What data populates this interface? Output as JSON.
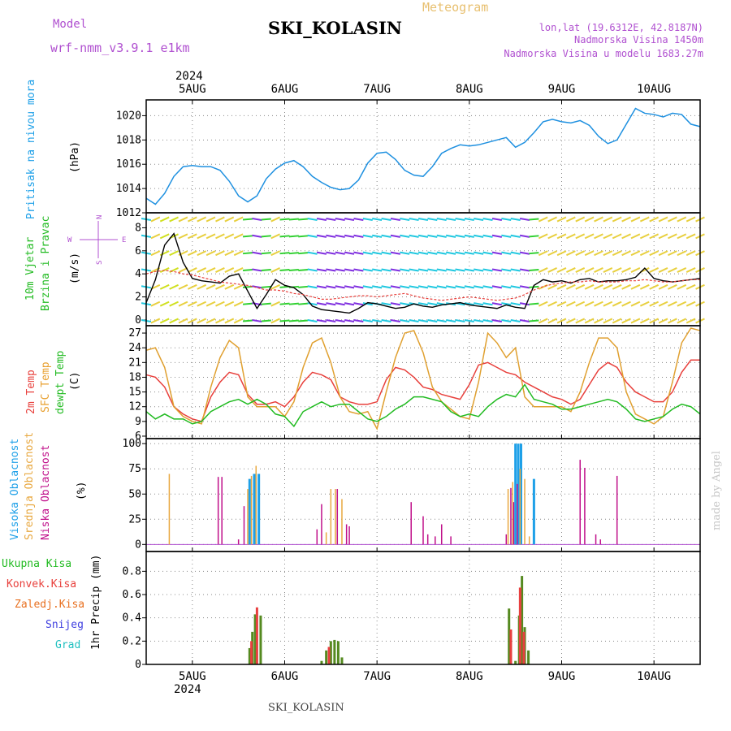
{
  "header": {
    "model_label": "Model",
    "model_name": "wrf-nmm_v3.9.1 e1km",
    "title": "SKI_KOLASIN",
    "product": "Meteogram",
    "coords": "lon,lat (19.6312E, 42.8187N)",
    "elevation": "Nadmorska Visina 1450m",
    "model_elevation": "Nadmorska Visina u modelu 1683.27m",
    "footer_station": "SKI_KOLASIN",
    "watermark": "made by Angel",
    "year": "2024"
  },
  "colors": {
    "pressure": "#1e90e0",
    "t2m": "#e8403c",
    "sfc": "#e0a030",
    "dewpt": "#22bb22",
    "high_cloud": "#1ea0e8",
    "mid_cloud": "#e8a840",
    "low_cloud": "#c0108a",
    "total_precip": "#44bb22",
    "conv_precip": "#e84040",
    "frz_precip": "#e87020",
    "snow": "#4040e0",
    "graupel": "#20c0c0",
    "title_purple": "#b050d0",
    "grid": "#888888"
  },
  "chart_data": [
    {
      "type": "line",
      "id": "pressure",
      "ylabel_left": "Pritisak na nivou mora",
      "unit": "(hPa)",
      "ylim": [
        1012,
        1021.3
      ],
      "yticks": [
        1012,
        1014,
        1016,
        1018,
        1020
      ],
      "x": [
        4.5,
        4.6,
        4.7,
        4.8,
        4.9,
        5.0,
        5.1,
        5.2,
        5.3,
        5.4,
        5.5,
        5.6,
        5.7,
        5.8,
        5.9,
        6.0,
        6.1,
        6.2,
        6.3,
        6.4,
        6.5,
        6.6,
        6.7,
        6.8,
        6.9,
        7.0,
        7.1,
        7.2,
        7.3,
        7.4,
        7.5,
        7.6,
        7.7,
        7.8,
        7.9,
        8.0,
        8.1,
        8.2,
        8.3,
        8.4,
        8.5,
        8.6,
        8.7,
        8.8,
        8.9,
        9.0,
        9.1,
        9.2,
        9.3,
        9.4,
        9.5,
        9.6,
        9.7,
        9.8,
        9.9,
        10.0,
        10.1,
        10.2,
        10.3,
        10.4,
        10.5
      ],
      "series": [
        {
          "name": "Pritisak",
          "values": [
            1013.2,
            1012.7,
            1013.6,
            1015.0,
            1015.8,
            1015.9,
            1015.8,
            1015.8,
            1015.5,
            1014.6,
            1013.4,
            1012.9,
            1013.4,
            1014.8,
            1015.6,
            1016.1,
            1016.3,
            1015.8,
            1015.0,
            1014.5,
            1014.1,
            1013.9,
            1014.0,
            1014.7,
            1016.1,
            1016.9,
            1017.0,
            1016.4,
            1015.5,
            1015.1,
            1015.0,
            1015.8,
            1016.9,
            1017.3,
            1017.6,
            1017.5,
            1017.6,
            1017.8,
            1018.0,
            1018.2,
            1017.4,
            1017.8,
            1018.6,
            1019.5,
            1019.7,
            1019.5,
            1019.4,
            1019.6,
            1019.2,
            1018.3,
            1017.7,
            1018.0,
            1019.3,
            1020.6,
            1020.2,
            1020.1,
            1019.9,
            1020.2,
            1020.1,
            1019.3,
            1019.1
          ]
        }
      ]
    },
    {
      "type": "line",
      "id": "wind",
      "ylabel_left": "10m Vjetar",
      "ylabel_left2": "Brzina i Pravac",
      "unit": "(m/s)",
      "compass": {
        "n": "N",
        "s": "S",
        "w": "W",
        "e": "E"
      },
      "ylim": [
        -0.5,
        9.3
      ],
      "yticks": [
        0,
        2,
        4,
        6,
        8
      ],
      "x": [
        4.5,
        4.6,
        4.7,
        4.8,
        4.9,
        5.0,
        5.1,
        5.2,
        5.3,
        5.4,
        5.5,
        5.6,
        5.7,
        5.8,
        5.9,
        6.0,
        6.1,
        6.2,
        6.3,
        6.4,
        6.5,
        6.6,
        6.7,
        6.8,
        6.9,
        7.0,
        7.1,
        7.2,
        7.3,
        7.4,
        7.5,
        7.6,
        7.7,
        7.8,
        7.9,
        8.0,
        8.1,
        8.2,
        8.3,
        8.4,
        8.5,
        8.6,
        8.7,
        8.8,
        8.9,
        9.0,
        9.1,
        9.2,
        9.3,
        9.4,
        9.5,
        9.6,
        9.7,
        9.8,
        9.9,
        10.0,
        10.1,
        10.2,
        10.3,
        10.4,
        10.5
      ],
      "series": [
        {
          "name": "Brzina",
          "values": [
            1.5,
            3.5,
            6.5,
            7.5,
            5.0,
            3.6,
            3.4,
            3.3,
            3.2,
            3.8,
            4.0,
            2.5,
            1.0,
            2.2,
            3.5,
            3.0,
            2.8,
            2.2,
            1.2,
            0.9,
            0.8,
            0.7,
            0.6,
            1.0,
            1.5,
            1.4,
            1.2,
            1.0,
            1.1,
            1.4,
            1.2,
            1.1,
            1.3,
            1.4,
            1.5,
            1.3,
            1.2,
            1.1,
            1.0,
            1.3,
            1.1,
            1.0,
            3.0,
            3.5,
            3.3,
            3.4,
            3.2,
            3.5,
            3.6,
            3.3,
            3.4,
            3.4,
            3.5,
            3.7,
            4.5,
            3.6,
            3.4,
            3.3,
            3.4,
            3.5,
            3.6
          ]
        },
        {
          "name": "Udari",
          "values": [
            4.0,
            4.2,
            4.3,
            4.2,
            4.0,
            3.9,
            3.7,
            3.5,
            3.3,
            3.2,
            3.1,
            3.0,
            2.8,
            2.6,
            2.6,
            2.5,
            2.3,
            2.2,
            2.0,
            1.8,
            1.8,
            1.9,
            2.0,
            2.1,
            2.1,
            2.0,
            2.1,
            2.2,
            2.3,
            2.1,
            1.9,
            1.8,
            1.7,
            1.8,
            1.9,
            2.0,
            1.9,
            1.8,
            1.7,
            1.8,
            1.9,
            2.2,
            2.6,
            2.9,
            3.1,
            3.2,
            3.3,
            3.3,
            3.4,
            3.3,
            3.3,
            3.3,
            3.4,
            3.4,
            3.5,
            3.4,
            3.3,
            3.3,
            3.4,
            3.5,
            3.5
          ]
        }
      ]
    },
    {
      "type": "line",
      "id": "temperature",
      "ylabel_left": [
        "2m Temp",
        "SFC Temp",
        "dewpt Temp"
      ],
      "unit": "(C)",
      "ylim": [
        5.5,
        28.5
      ],
      "yticks": [
        6,
        9,
        12,
        15,
        18,
        21,
        24,
        27
      ],
      "x": [
        4.5,
        4.6,
        4.7,
        4.8,
        4.9,
        5.0,
        5.1,
        5.2,
        5.3,
        5.4,
        5.5,
        5.6,
        5.7,
        5.8,
        5.9,
        6.0,
        6.1,
        6.2,
        6.3,
        6.4,
        6.5,
        6.6,
        6.7,
        6.8,
        6.9,
        7.0,
        7.1,
        7.2,
        7.3,
        7.4,
        7.5,
        7.6,
        7.7,
        7.8,
        7.9,
        8.0,
        8.1,
        8.2,
        8.3,
        8.4,
        8.5,
        8.6,
        8.7,
        8.8,
        8.9,
        9.0,
        9.1,
        9.2,
        9.3,
        9.4,
        9.5,
        9.6,
        9.7,
        9.8,
        9.9,
        10.0,
        10.1,
        10.2,
        10.3,
        10.4,
        10.5
      ],
      "series": [
        {
          "name": "2m Temp",
          "values": [
            18.5,
            18.0,
            16.0,
            12.0,
            10.5,
            9.5,
            9.0,
            14.0,
            17.0,
            19.0,
            18.5,
            14.5,
            12.5,
            12.5,
            13.0,
            12.0,
            14.0,
            17.0,
            19.0,
            18.5,
            17.5,
            14.0,
            13.0,
            12.5,
            12.5,
            13.0,
            17.5,
            20.0,
            19.5,
            18.0,
            16.0,
            15.5,
            14.5,
            14.0,
            13.5,
            16.5,
            20.5,
            21.0,
            20.0,
            19.0,
            18.5,
            17.0,
            16.0,
            15.0,
            14.0,
            13.5,
            12.5,
            13.5,
            16.5,
            19.5,
            21.0,
            20.0,
            17.0,
            15.0,
            14.0,
            13.0,
            13.0,
            15.0,
            19.0,
            21.5,
            21.5
          ]
        },
        {
          "name": "SFC Temp",
          "values": [
            23.5,
            24.0,
            20.0,
            12.0,
            10.0,
            9.0,
            8.5,
            16.0,
            22.0,
            25.5,
            24.0,
            14.0,
            12.0,
            12.0,
            12.0,
            10.0,
            13.0,
            20.0,
            25.0,
            26.0,
            21.0,
            14.0,
            11.0,
            10.5,
            11.0,
            7.5,
            15.0,
            22.0,
            27.0,
            27.5,
            23.0,
            16.0,
            13.0,
            11.5,
            10.0,
            9.5,
            17.0,
            27.0,
            25.0,
            22.0,
            24.0,
            14.0,
            12.0,
            12.0,
            12.0,
            12.0,
            11.0,
            15.0,
            21.0,
            26.0,
            26.0,
            24.0,
            15.0,
            10.5,
            9.5,
            8.5,
            10.0,
            17.0,
            25.0,
            28.0,
            27.5
          ]
        },
        {
          "name": "dewpt Temp",
          "values": [
            11.0,
            9.5,
            10.5,
            9.5,
            9.5,
            8.5,
            9.0,
            11.0,
            12.0,
            13.0,
            13.5,
            12.5,
            13.5,
            12.5,
            10.5,
            10.0,
            8.0,
            11.0,
            12.0,
            13.0,
            12.0,
            12.5,
            12.5,
            11.0,
            9.5,
            9.0,
            10.0,
            11.5,
            12.5,
            14.0,
            14.0,
            13.5,
            13.0,
            11.0,
            10.0,
            10.5,
            10.0,
            12.0,
            13.5,
            14.5,
            14.0,
            16.5,
            13.5,
            13.0,
            12.5,
            11.5,
            11.5,
            12.0,
            12.5,
            13.0,
            13.5,
            13.0,
            11.5,
            9.5,
            9.0,
            9.5,
            10.0,
            11.5,
            12.5,
            12.0,
            10.5
          ]
        }
      ]
    },
    {
      "type": "bar",
      "id": "clouds",
      "ylabel_left": [
        "Visoka Oblacnost",
        "Srednja Oblacnost",
        "Niska Oblacnost"
      ],
      "unit": "(%)",
      "ylim": [
        -7,
        105
      ],
      "yticks": [
        0,
        25,
        50,
        75,
        100
      ],
      "series": [
        {
          "name": "Visoka Oblacnost",
          "x": [
            5.62,
            5.67,
            5.72,
            8.5,
            8.53,
            8.56,
            8.7
          ],
          "values": [
            65,
            70,
            70,
            100,
            100,
            100,
            65
          ]
        },
        {
          "name": "Srednja Oblacnost",
          "x": [
            4.75,
            5.6,
            5.64,
            5.69,
            6.45,
            6.5,
            6.55,
            6.62,
            8.42,
            8.47,
            8.55,
            8.6,
            8.65
          ],
          "values": [
            70,
            55,
            68,
            78,
            12,
            55,
            55,
            45,
            55,
            62,
            75,
            65,
            8
          ]
        },
        {
          "name": "Niska Oblacnost",
          "x": [
            5.28,
            5.32,
            5.5,
            5.56,
            6.35,
            6.4,
            6.57,
            6.67,
            6.7,
            7.37,
            7.5,
            7.55,
            7.63,
            7.7,
            7.8,
            8.4,
            8.45,
            8.48,
            8.52,
            9.2,
            9.25,
            9.37,
            9.42,
            9.6
          ],
          "values": [
            67,
            67,
            5,
            38,
            15,
            40,
            55,
            20,
            18,
            42,
            28,
            10,
            8,
            20,
            8,
            10,
            56,
            42,
            60,
            84,
            76,
            10,
            5,
            68
          ]
        }
      ]
    },
    {
      "type": "bar",
      "id": "precip",
      "ylabel_left": [
        "Ukupna Kisa",
        "Konvek.Kisa",
        "Zaledj.Kisa",
        "Snijeg",
        "Grad"
      ],
      "ylabel_axis": "1hr Precip (mm)",
      "ylim": [
        0,
        0.97
      ],
      "yticks": [
        0,
        0.2,
        0.4,
        0.6,
        0.8
      ],
      "series": [
        {
          "name": "Ukupna Kisa",
          "x": [
            5.62,
            5.65,
            5.68,
            5.74,
            6.4,
            6.45,
            6.5,
            6.54,
            6.58,
            6.62,
            8.43,
            8.5,
            8.54,
            8.57,
            8.6,
            8.64
          ],
          "values": [
            0.14,
            0.28,
            0.43,
            0.42,
            0.03,
            0.12,
            0.2,
            0.21,
            0.2,
            0.06,
            0.48,
            0.03,
            0.42,
            0.76,
            0.32,
            0.12
          ]
        },
        {
          "name": "Konvek.Kisa",
          "x": [
            5.64,
            5.7,
            6.48,
            8.45,
            8.55,
            8.59
          ],
          "values": [
            0.2,
            0.49,
            0.15,
            0.3,
            0.66,
            0.28
          ]
        }
      ]
    }
  ],
  "x_axis": {
    "labels": [
      {
        "x": 5,
        "label": "5AUG"
      },
      {
        "x": 6,
        "label": "6AUG"
      },
      {
        "x": 7,
        "label": "7AUG"
      },
      {
        "x": 8,
        "label": "8AUG"
      },
      {
        "x": 9,
        "label": "9AUG"
      },
      {
        "x": 10,
        "label": "10AUG"
      }
    ],
    "xlim": [
      4.5,
      10.5
    ]
  }
}
